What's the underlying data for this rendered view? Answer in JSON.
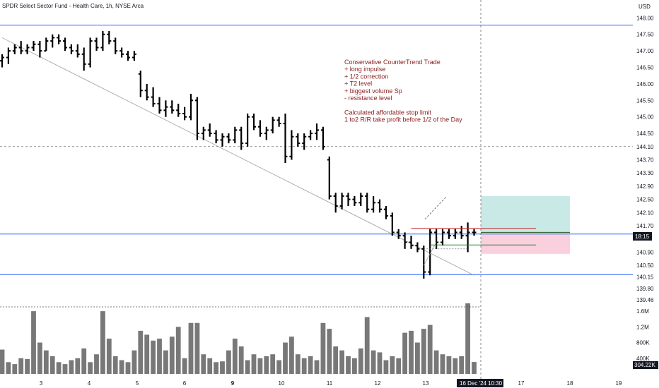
{
  "header": {
    "title": "SPDR Select Sector Fund - Health Care, 1h, NYSE Arca",
    "currency": "USD"
  },
  "price_scale": {
    "labels": [
      "148.00",
      "147.50",
      "147.00",
      "146.50",
      "146.00",
      "145.50",
      "145.00",
      "144.50",
      "144.10",
      "143.70",
      "143.30",
      "142.90",
      "142.50",
      "142.10",
      "141.70",
      "140.90",
      "140.50",
      "140.15",
      "139.80",
      "139.46"
    ],
    "current_tag": "18:15"
  },
  "volume_scale": {
    "labels": [
      "1.6M",
      "1.2M",
      "800K",
      "400K"
    ],
    "current_tag": "304.22K"
  },
  "time_scale": {
    "labels": [
      "3",
      "4",
      "5",
      "6",
      "9",
      "10",
      "11",
      "12",
      "13",
      "17",
      "18",
      "19"
    ],
    "crosshair_label": "16 Dec '24",
    "crosshair_time": "10:30"
  },
  "annotation": {
    "lines": [
      "Conservative CounterTrend Trade",
      "+ long impulse",
      "+ 1/2 correction",
      "+ T2 level",
      "+ biggest volume Sp",
      "- resistance level",
      "",
      "Calculated affordable stop limit",
      "1 to2 R/R take profit before 1/2 of the Day"
    ]
  },
  "colors": {
    "bars": "#000000",
    "volume": "#787878",
    "level_lines": "#2962ff",
    "profit_zone": "#b2dfdb",
    "loss_zone": "#f8bbd0",
    "note_text": "#8a1c1c"
  },
  "chart_data": {
    "type": "ohlc",
    "timeframe": "1h",
    "y_range": [
      139.35,
      148.2
    ],
    "volume_range": [
      0,
      1800000
    ],
    "horizontal_levels": [
      147.78,
      141.45,
      140.22
    ],
    "dashed_levels": [
      144.1
    ],
    "trend_line": {
      "from_bar": 0,
      "from_price": 147.4,
      "to_bar": 75,
      "to_price": 140.2
    },
    "position": {
      "entry": 141.5,
      "target": 142.6,
      "stop": 140.85
    },
    "bars": [
      {
        "o": 146.7,
        "h": 146.9,
        "l": 146.5,
        "c": 146.8,
        "v": 620000
      },
      {
        "o": 146.8,
        "h": 147.1,
        "l": 146.6,
        "c": 147.0,
        "v": 300000
      },
      {
        "o": 147.0,
        "h": 147.2,
        "l": 146.9,
        "c": 147.1,
        "v": 250000
      },
      {
        "o": 147.1,
        "h": 147.3,
        "l": 146.9,
        "c": 147.0,
        "v": 400000
      },
      {
        "o": 147.0,
        "h": 147.2,
        "l": 146.9,
        "c": 147.1,
        "v": 380000
      },
      {
        "o": 147.1,
        "h": 147.3,
        "l": 147.0,
        "c": 147.2,
        "v": 1600000
      },
      {
        "o": 147.2,
        "h": 147.3,
        "l": 146.8,
        "c": 147.0,
        "v": 800000
      },
      {
        "o": 147.0,
        "h": 147.4,
        "l": 147.0,
        "c": 147.3,
        "v": 600000
      },
      {
        "o": 147.3,
        "h": 147.5,
        "l": 147.1,
        "c": 147.4,
        "v": 450000
      },
      {
        "o": 147.4,
        "h": 147.5,
        "l": 147.2,
        "c": 147.3,
        "v": 300000
      },
      {
        "o": 147.3,
        "h": 147.4,
        "l": 147.0,
        "c": 147.1,
        "v": 250000
      },
      {
        "o": 147.1,
        "h": 147.2,
        "l": 146.9,
        "c": 147.0,
        "v": 350000
      },
      {
        "o": 147.0,
        "h": 147.2,
        "l": 146.8,
        "c": 146.9,
        "v": 400000
      },
      {
        "o": 146.9,
        "h": 147.1,
        "l": 146.4,
        "c": 146.6,
        "v": 650000
      },
      {
        "o": 146.6,
        "h": 147.4,
        "l": 146.5,
        "c": 147.3,
        "v": 300000
      },
      {
        "o": 147.3,
        "h": 147.4,
        "l": 147.0,
        "c": 147.1,
        "v": 500000
      },
      {
        "o": 147.1,
        "h": 147.6,
        "l": 147.0,
        "c": 147.5,
        "v": 1600000
      },
      {
        "o": 147.5,
        "h": 147.6,
        "l": 147.2,
        "c": 147.3,
        "v": 900000
      },
      {
        "o": 147.3,
        "h": 147.4,
        "l": 146.9,
        "c": 147.0,
        "v": 450000
      },
      {
        "o": 147.0,
        "h": 147.1,
        "l": 146.8,
        "c": 146.9,
        "v": 350000
      },
      {
        "o": 146.9,
        "h": 147.0,
        "l": 146.7,
        "c": 146.8,
        "v": 300000
      },
      {
        "o": 146.8,
        "h": 147.0,
        "l": 146.7,
        "c": 146.9,
        "v": 600000
      },
      {
        "o": 146.3,
        "h": 146.4,
        "l": 145.6,
        "c": 145.8,
        "v": 1100000
      },
      {
        "o": 145.8,
        "h": 146.0,
        "l": 145.5,
        "c": 145.6,
        "v": 1000000
      },
      {
        "o": 145.6,
        "h": 145.9,
        "l": 145.3,
        "c": 145.4,
        "v": 850000
      },
      {
        "o": 145.4,
        "h": 145.6,
        "l": 145.1,
        "c": 145.2,
        "v": 900000
      },
      {
        "o": 145.2,
        "h": 145.5,
        "l": 145.0,
        "c": 145.3,
        "v": 600000
      },
      {
        "o": 145.3,
        "h": 145.5,
        "l": 145.1,
        "c": 145.2,
        "v": 950000
      },
      {
        "o": 145.2,
        "h": 145.4,
        "l": 145.0,
        "c": 145.1,
        "v": 1200000
      },
      {
        "o": 145.1,
        "h": 145.3,
        "l": 144.9,
        "c": 145.0,
        "v": 400000
      },
      {
        "o": 145.0,
        "h": 145.7,
        "l": 144.9,
        "c": 145.5,
        "v": 1300000
      },
      {
        "o": 145.5,
        "h": 145.6,
        "l": 144.3,
        "c": 144.5,
        "v": 1300000
      },
      {
        "o": 144.5,
        "h": 144.7,
        "l": 144.3,
        "c": 144.6,
        "v": 500000
      },
      {
        "o": 144.6,
        "h": 144.8,
        "l": 144.4,
        "c": 144.5,
        "v": 400000
      },
      {
        "o": 144.5,
        "h": 144.6,
        "l": 144.2,
        "c": 144.3,
        "v": 300000
      },
      {
        "o": 144.3,
        "h": 144.5,
        "l": 144.1,
        "c": 144.4,
        "v": 320000
      },
      {
        "o": 144.4,
        "h": 144.5,
        "l": 144.2,
        "c": 144.3,
        "v": 600000
      },
      {
        "o": 144.3,
        "h": 144.7,
        "l": 144.2,
        "c": 144.6,
        "v": 900000
      },
      {
        "o": 144.6,
        "h": 144.7,
        "l": 144.0,
        "c": 144.2,
        "v": 700000
      },
      {
        "o": 144.2,
        "h": 145.1,
        "l": 144.1,
        "c": 145.0,
        "v": 350000
      },
      {
        "o": 145.0,
        "h": 145.1,
        "l": 144.6,
        "c": 144.7,
        "v": 500000
      },
      {
        "o": 144.7,
        "h": 144.9,
        "l": 144.4,
        "c": 144.5,
        "v": 400000
      },
      {
        "o": 144.5,
        "h": 144.7,
        "l": 144.3,
        "c": 144.6,
        "v": 450000
      },
      {
        "o": 144.6,
        "h": 145.0,
        "l": 144.5,
        "c": 144.9,
        "v": 500000
      },
      {
        "o": 144.9,
        "h": 145.0,
        "l": 144.7,
        "c": 144.8,
        "v": 350000
      },
      {
        "o": 144.8,
        "h": 145.1,
        "l": 143.6,
        "c": 143.8,
        "v": 800000
      },
      {
        "o": 143.8,
        "h": 144.6,
        "l": 143.7,
        "c": 144.4,
        "v": 950000
      },
      {
        "o": 144.4,
        "h": 144.5,
        "l": 144.1,
        "c": 144.2,
        "v": 500000
      },
      {
        "o": 144.2,
        "h": 144.5,
        "l": 144.0,
        "c": 144.4,
        "v": 400000
      },
      {
        "o": 144.4,
        "h": 144.6,
        "l": 144.3,
        "c": 144.5,
        "v": 450000
      },
      {
        "o": 144.5,
        "h": 144.8,
        "l": 144.3,
        "c": 144.6,
        "v": 350000
      },
      {
        "o": 144.6,
        "h": 144.7,
        "l": 144.0,
        "c": 144.1,
        "v": 1300000
      },
      {
        "o": 143.7,
        "h": 143.8,
        "l": 142.5,
        "c": 142.6,
        "v": 1150000
      },
      {
        "o": 142.6,
        "h": 142.7,
        "l": 142.1,
        "c": 142.3,
        "v": 700000
      },
      {
        "o": 142.3,
        "h": 142.7,
        "l": 142.2,
        "c": 142.6,
        "v": 600000
      },
      {
        "o": 142.6,
        "h": 142.7,
        "l": 142.3,
        "c": 142.5,
        "v": 450000
      },
      {
        "o": 142.5,
        "h": 142.6,
        "l": 142.3,
        "c": 142.4,
        "v": 400000
      },
      {
        "o": 142.4,
        "h": 142.7,
        "l": 142.3,
        "c": 142.6,
        "v": 650000
      },
      {
        "o": 142.6,
        "h": 142.7,
        "l": 142.1,
        "c": 142.2,
        "v": 1450000
      },
      {
        "o": 142.2,
        "h": 142.6,
        "l": 142.1,
        "c": 142.4,
        "v": 600000
      },
      {
        "o": 142.4,
        "h": 142.5,
        "l": 142.1,
        "c": 142.2,
        "v": 550000
      },
      {
        "o": 142.2,
        "h": 142.3,
        "l": 141.9,
        "c": 142.0,
        "v": 350000
      },
      {
        "o": 142.0,
        "h": 142.1,
        "l": 141.4,
        "c": 141.5,
        "v": 450000
      },
      {
        "o": 141.5,
        "h": 141.6,
        "l": 141.3,
        "c": 141.4,
        "v": 400000
      },
      {
        "o": 141.4,
        "h": 141.5,
        "l": 141.0,
        "c": 141.2,
        "v": 1050000
      },
      {
        "o": 141.2,
        "h": 141.4,
        "l": 141.0,
        "c": 141.1,
        "v": 1100000
      },
      {
        "o": 141.1,
        "h": 141.2,
        "l": 140.9,
        "c": 141.0,
        "v": 800000
      },
      {
        "o": 141.0,
        "h": 141.1,
        "l": 140.1,
        "c": 140.3,
        "v": 1150000
      },
      {
        "o": 140.3,
        "h": 141.6,
        "l": 140.2,
        "c": 141.5,
        "v": 1250000
      },
      {
        "o": 141.5,
        "h": 141.6,
        "l": 141.0,
        "c": 141.2,
        "v": 600000
      },
      {
        "o": 141.2,
        "h": 141.6,
        "l": 141.1,
        "c": 141.5,
        "v": 500000
      },
      {
        "o": 141.5,
        "h": 141.6,
        "l": 141.3,
        "c": 141.4,
        "v": 450000
      },
      {
        "o": 141.4,
        "h": 141.6,
        "l": 141.3,
        "c": 141.5,
        "v": 400000
      },
      {
        "o": 141.5,
        "h": 141.7,
        "l": 141.3,
        "c": 141.4,
        "v": 450000
      },
      {
        "o": 141.4,
        "h": 141.8,
        "l": 140.9,
        "c": 141.5,
        "v": 1800000
      },
      {
        "o": 141.5,
        "h": 141.6,
        "l": 141.4,
        "c": 141.5,
        "v": 304220
      }
    ]
  }
}
